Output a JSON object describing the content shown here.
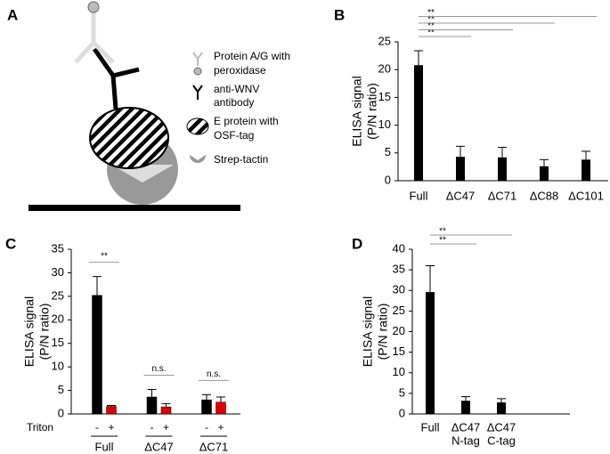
{
  "diagram": {
    "panel_label": "A",
    "legend": [
      [
        "Protein A/G with",
        "peroxidase"
      ],
      [
        "anti-WNV",
        "antibody"
      ],
      [
        "E protein with",
        "OSF-tag"
      ],
      [
        "Strep-tactin"
      ]
    ]
  },
  "chart_data": [
    {
      "type": "bar",
      "panel_label": "B",
      "ylabel": [
        "ELISA signal",
        "(P/N ratio)"
      ],
      "categories": [
        "Full",
        "ΔC47",
        "ΔC71",
        "ΔC88",
        "ΔC101"
      ],
      "values": [
        20.8,
        4.3,
        4.2,
        2.6,
        3.8
      ],
      "errors": [
        2.6,
        1.9,
        1.8,
        1.2,
        1.5
      ],
      "color": "#000000",
      "ylim": [
        0,
        25
      ],
      "yticks": [
        0,
        5,
        10,
        15,
        20,
        25
      ],
      "annotations": [
        {
          "from": 0,
          "to": 1,
          "label": "**"
        },
        {
          "from": 0,
          "to": 2,
          "label": "**"
        },
        {
          "from": 0,
          "to": 3,
          "label": "**"
        },
        {
          "from": 0,
          "to": 4,
          "label": "**"
        }
      ]
    },
    {
      "type": "grouped_bar",
      "panel_label": "C",
      "ylabel": [
        "ELISA signal",
        "(P/N ratio)"
      ],
      "x_row_label": "Triton",
      "categories": [
        "Full",
        "ΔC47",
        "ΔC71"
      ],
      "series": [
        {
          "name": "-",
          "color": "#000000",
          "values": [
            25.2,
            3.6,
            3.0
          ],
          "errors": [
            4.0,
            1.6,
            1.1
          ]
        },
        {
          "name": "+",
          "color": "#e00000",
          "values": [
            1.6,
            1.5,
            2.5
          ],
          "errors": [
            0.2,
            0.7,
            1.1
          ]
        }
      ],
      "ylim": [
        0,
        35
      ],
      "yticks": [
        0,
        5,
        10,
        15,
        20,
        25,
        30,
        35
      ],
      "annotations": [
        {
          "group": 0,
          "label": "**"
        },
        {
          "group": 1,
          "label": "n.s."
        },
        {
          "group": 2,
          "label": "n.s."
        }
      ]
    },
    {
      "type": "bar",
      "panel_label": "D",
      "ylabel": [
        "ELISA signal",
        "(P/N ratio)"
      ],
      "categories": [
        [
          "Full"
        ],
        [
          "ΔC47",
          "N-tag"
        ],
        [
          "ΔC47",
          "C-tag"
        ]
      ],
      "values": [
        29.6,
        3.2,
        2.8
      ],
      "errors": [
        6.4,
        1.0,
        0.9
      ],
      "color": "#000000",
      "ylim": [
        0,
        40
      ],
      "yticks": [
        0,
        5,
        10,
        15,
        20,
        25,
        30,
        35,
        40
      ],
      "annotations": [
        {
          "from": 0,
          "to": 1,
          "label": "**"
        },
        {
          "from": 0,
          "to": 2,
          "label": "**"
        }
      ]
    }
  ]
}
